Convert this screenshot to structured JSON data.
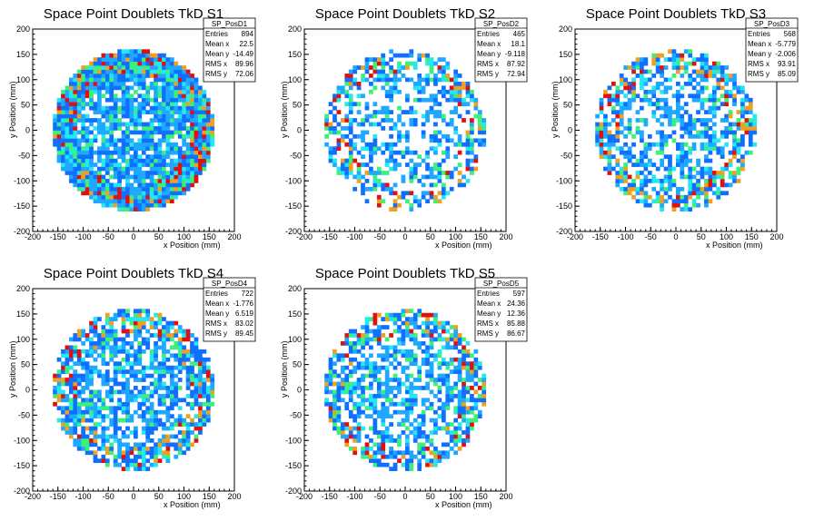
{
  "colors": {
    "low": "#0f6fff",
    "mid1": "#1fa8ff",
    "mid2": "#24e8f0",
    "mid3": "#3cf07a",
    "high1": "#f0a020",
    "high2": "#e01010"
  },
  "chart_data": [
    {
      "type": "heatmap",
      "title": "Space Point Doublets TkD S1",
      "xlabel": "x Position (mm)",
      "ylabel": "y Position (mm)",
      "xlim": [
        -200,
        200
      ],
      "ylim": [
        -200,
        200
      ],
      "xticks": [
        -200,
        -150,
        -100,
        -50,
        0,
        50,
        100,
        150,
        200
      ],
      "yticks": [
        -200,
        -150,
        -100,
        -50,
        0,
        50,
        100,
        150,
        200
      ],
      "stats_title": "SP_PosD1",
      "stats": [
        {
          "label": "Entries",
          "value": "894"
        },
        {
          "label": "Mean x",
          "value": "22.5"
        },
        {
          "label": "Mean y",
          "value": "-14.49"
        },
        {
          "label": "RMS x",
          "value": "89.96"
        },
        {
          "label": "RMS y",
          "value": "72.06"
        }
      ],
      "density": 0.8,
      "seed": 11
    },
    {
      "type": "heatmap",
      "title": "Space Point Doublets TkD S2",
      "xlabel": "x Position (mm)",
      "ylabel": "y Position (mm)",
      "xlim": [
        -200,
        200
      ],
      "ylim": [
        -200,
        200
      ],
      "xticks": [
        -200,
        -150,
        -100,
        -50,
        0,
        50,
        100,
        150,
        200
      ],
      "yticks": [
        -200,
        -150,
        -100,
        -50,
        0,
        50,
        100,
        150,
        200
      ],
      "stats_title": "SP_PosD2",
      "stats": [
        {
          "label": "Entries",
          "value": "465"
        },
        {
          "label": "Mean x",
          "value": "18.1"
        },
        {
          "label": "Mean y",
          "value": "-9.118"
        },
        {
          "label": "RMS x",
          "value": "87.92"
        },
        {
          "label": "RMS y",
          "value": "72.94"
        }
      ],
      "density": 0.42,
      "seed": 23
    },
    {
      "type": "heatmap",
      "title": "Space Point Doublets TkD S3",
      "xlabel": "x Position (mm)",
      "ylabel": "y Position (mm)",
      "xlim": [
        -200,
        200
      ],
      "ylim": [
        -200,
        200
      ],
      "xticks": [
        -200,
        -150,
        -100,
        -50,
        0,
        50,
        100,
        150,
        200
      ],
      "yticks": [
        -200,
        -150,
        -100,
        -50,
        0,
        50,
        100,
        150,
        200
      ],
      "stats_title": "SP_PosD3",
      "stats": [
        {
          "label": "Entries",
          "value": "568"
        },
        {
          "label": "Mean x",
          "value": "-5.779"
        },
        {
          "label": "Mean y",
          "value": "-2.006"
        },
        {
          "label": "RMS x",
          "value": "93.91"
        },
        {
          "label": "RMS y",
          "value": "85.09"
        }
      ],
      "density": 0.5,
      "seed": 37
    },
    {
      "type": "heatmap",
      "title": "Space Point Doublets TkD S4",
      "xlabel": "x Position (mm)",
      "ylabel": "y Position (mm)",
      "xlim": [
        -200,
        200
      ],
      "ylim": [
        -200,
        200
      ],
      "xticks": [
        -200,
        -150,
        -100,
        -50,
        0,
        50,
        100,
        150,
        200
      ],
      "yticks": [
        -200,
        -150,
        -100,
        -50,
        0,
        50,
        100,
        150,
        200
      ],
      "stats_title": "SP_PosD4",
      "stats": [
        {
          "label": "Entries",
          "value": "722"
        },
        {
          "label": "Mean x",
          "value": "-1.776"
        },
        {
          "label": "Mean y",
          "value": "6.519"
        },
        {
          "label": "RMS x",
          "value": "83.02"
        },
        {
          "label": "RMS y",
          "value": "89.45"
        }
      ],
      "density": 0.62,
      "seed": 41
    },
    {
      "type": "heatmap",
      "title": "Space Point Doublets TkD S5",
      "xlabel": "x Position (mm)",
      "ylabel": "y Position (mm)",
      "xlim": [
        -200,
        200
      ],
      "ylim": [
        -200,
        200
      ],
      "xticks": [
        -200,
        -150,
        -100,
        -50,
        0,
        50,
        100,
        150,
        200
      ],
      "yticks": [
        -200,
        -150,
        -100,
        -50,
        0,
        50,
        100,
        150,
        200
      ],
      "stats_title": "SP_PosD5",
      "stats": [
        {
          "label": "Entries",
          "value": "597"
        },
        {
          "label": "Mean x",
          "value": "24.36"
        },
        {
          "label": "Mean y",
          "value": "12.36"
        },
        {
          "label": "RMS x",
          "value": "85.88"
        },
        {
          "label": "RMS y",
          "value": "86.67"
        }
      ],
      "density": 0.52,
      "seed": 53
    }
  ]
}
